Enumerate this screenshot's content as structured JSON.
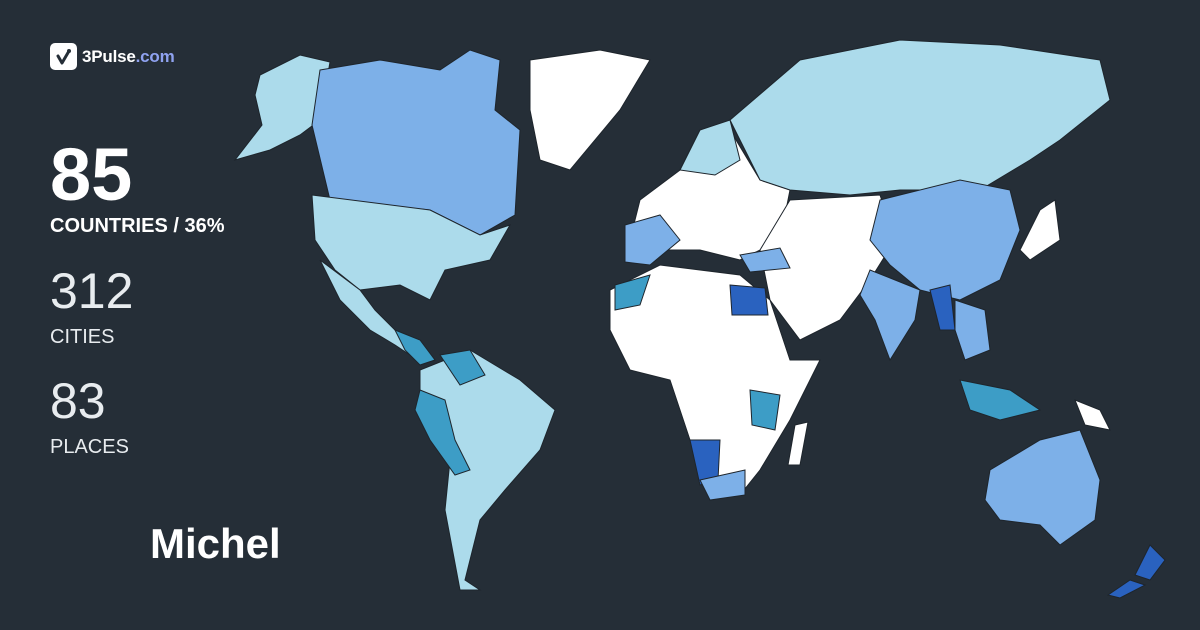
{
  "brand": {
    "name": "3Pulse",
    "domain": ".com"
  },
  "stats": {
    "countries": {
      "value": "85",
      "label": "COUNTRIES / 36%"
    },
    "cities": {
      "value": "312",
      "label": "CITIES"
    },
    "places": {
      "value": "83",
      "label": "PLACES"
    }
  },
  "user": {
    "name": "Michel"
  },
  "colors": {
    "background": "#252e37",
    "unvisited": "#ffffff",
    "level1": "#acdbeb",
    "level2": "#7db0e8",
    "level3": "#3d9dc6",
    "level4": "#2a62bf",
    "brand_accent": "#8fa2f0"
  }
}
